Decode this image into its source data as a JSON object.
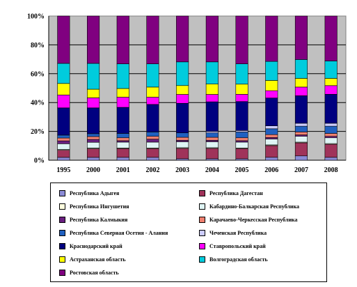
{
  "chart_data": {
    "type": "bar",
    "stacked": "percent",
    "categories": [
      "1995",
      "2000",
      "2001",
      "2002",
      "2003",
      "2004",
      "2005",
      "2006",
      "2007",
      "2008"
    ],
    "y_ticks": [
      "0%",
      "20%",
      "40%",
      "60%",
      "80%",
      "100%"
    ],
    "ylim": [
      0,
      100
    ],
    "grid": true,
    "plot_background": "#c0c0c0",
    "legend_position": "bottom",
    "series": [
      {
        "name": "Республика Адыгея",
        "color": "#8b8bd6",
        "values": [
          2,
          2,
          2,
          2,
          1,
          1,
          1,
          2,
          3,
          2
        ]
      },
      {
        "name": "Республика Дагестан",
        "color": "#a0335a",
        "values": [
          5,
          6,
          6,
          6,
          7,
          7,
          7,
          8,
          9,
          9
        ]
      },
      {
        "name": "Республика Ингушетия",
        "color": "#ffffe0",
        "values": [
          0.5,
          0.5,
          0.5,
          0.5,
          0.5,
          0.5,
          0.5,
          0.5,
          0.5,
          0.5
        ]
      },
      {
        "name": "Кабардино-Балкарская Республика",
        "color": "#dff5f5",
        "values": [
          4,
          4,
          4,
          4,
          4,
          4,
          4,
          4,
          4,
          4
        ]
      },
      {
        "name": "Республика Калмыкия",
        "color": "#6a2080",
        "values": [
          2,
          2,
          1,
          2,
          1,
          1,
          1,
          1,
          1,
          1
        ]
      },
      {
        "name": "Карачаево-Черкесская Республика",
        "color": "#f08070",
        "values": [
          2,
          2,
          2,
          2,
          2,
          2,
          2,
          2,
          2,
          2
        ]
      },
      {
        "name": "Республика Северная Осетия - Алания",
        "color": "#2060c0",
        "values": [
          2,
          2,
          3,
          3,
          3,
          3,
          4,
          4,
          4,
          5
        ]
      },
      {
        "name": "Чеченская Республика",
        "color": "#ccccff",
        "values": [
          0,
          0,
          0,
          0,
          0,
          1,
          1,
          2,
          2,
          2
        ]
      },
      {
        "name": "Краснодарский край",
        "color": "#000080",
        "values": [
          19,
          18,
          18,
          19,
          20,
          20,
          20,
          19,
          19,
          20
        ]
      },
      {
        "name": "Ставропольский край",
        "color": "#ff00ff",
        "values": [
          9,
          7,
          7,
          5,
          6,
          5,
          5,
          5,
          6,
          6
        ]
      },
      {
        "name": "Астраханская область",
        "color": "#ffff00",
        "values": [
          8,
          6,
          6,
          7,
          6,
          7,
          7,
          7,
          6,
          5
        ]
      },
      {
        "name": "Волгоградская область",
        "color": "#00ccdd",
        "values": [
          14,
          18,
          17,
          16,
          16,
          15,
          14,
          13,
          13,
          12
        ]
      },
      {
        "name": "Ростовская область",
        "color": "#800080",
        "values": [
          33,
          33,
          33,
          33,
          31,
          31,
          33,
          31,
          30,
          31
        ]
      }
    ]
  }
}
